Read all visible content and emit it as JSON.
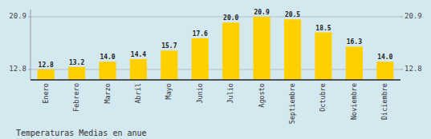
{
  "chart_data": {
    "type": "bar",
    "title": "Temperaturas Medias en anue",
    "categories": [
      "Enero",
      "Febrero",
      "Marzo",
      "Abril",
      "Mayo",
      "Junio",
      "Julio",
      "Agosto",
      "Septiembre",
      "Octubre",
      "Noviembre",
      "Diciembre"
    ],
    "values": [
      12.8,
      13.2,
      14.0,
      14.4,
      15.7,
      17.6,
      20.0,
      20.9,
      20.5,
      18.5,
      16.3,
      14.0
    ],
    "value_labels": [
      "12.8",
      "13.2",
      "14.0",
      "14.4",
      "15.7",
      "17.6",
      "20.0",
      "20.9",
      "20.5",
      "18.5",
      "16.3",
      "14.0"
    ],
    "color": "#FFD000",
    "ylim": [
      11.2,
      22.0
    ],
    "yticks": [
      12.8,
      20.9
    ],
    "grid": true,
    "data_labels": true
  }
}
